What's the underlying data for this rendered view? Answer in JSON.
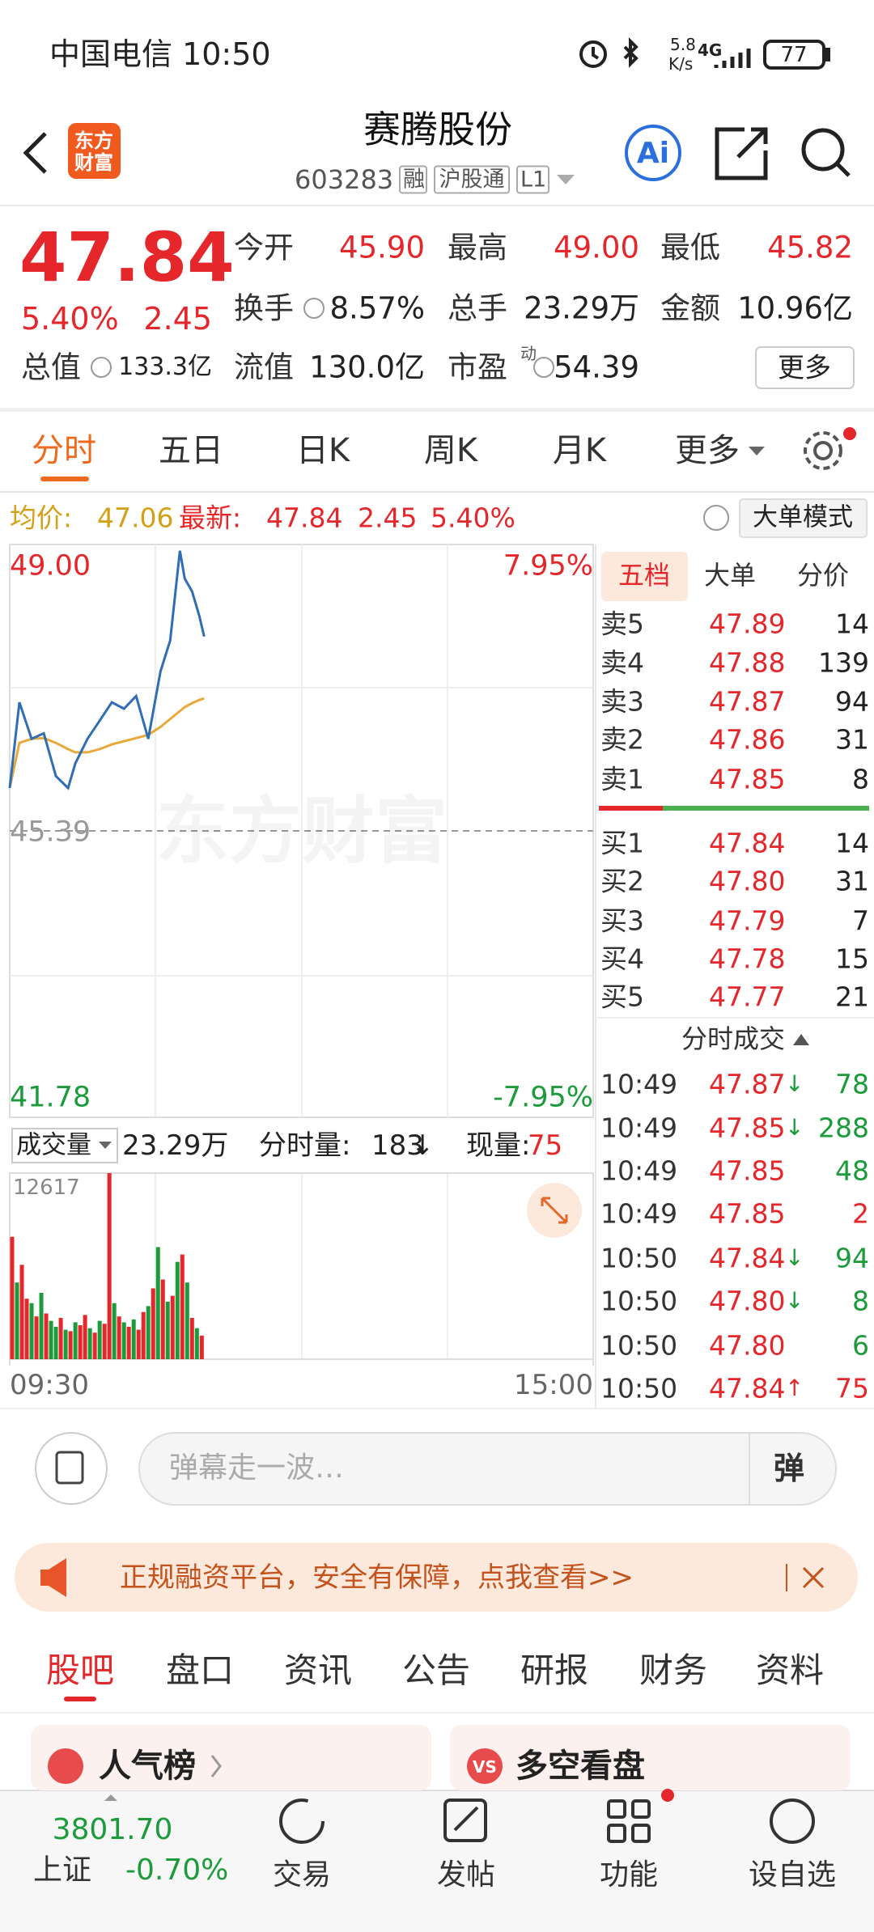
{
  "status_bar": {
    "carrier_time": "中国电信 10:50",
    "net_speed": "5.8",
    "net_unit": "K/s",
    "network": "4G",
    "battery": "77"
  },
  "header": {
    "logo": [
      "东方",
      "财富"
    ],
    "title": "赛腾股份",
    "code": "603283",
    "tags": [
      "融",
      "沪股通",
      "L1"
    ],
    "ai_icon": "Ai"
  },
  "quote": {
    "price": "47.84",
    "change_pct": "5.40%",
    "change": "2.45",
    "stats": [
      {
        "label": "今开",
        "value": "45.90",
        "color": "#e5262a"
      },
      {
        "label": "最高",
        "value": "49.00",
        "color": "#e5262a"
      },
      {
        "label": "最低",
        "value": "45.82",
        "color": "#e5262a"
      },
      {
        "label": "换手",
        "value": "8.57%"
      },
      {
        "label": "总手",
        "value": "23.29万"
      },
      {
        "label": "金额",
        "value": "10.96亿"
      },
      {
        "label": "总值",
        "value": "133.3亿"
      },
      {
        "label": "流值",
        "value": "130.0亿"
      },
      {
        "label": "市盈",
        "value": "54.39",
        "superscript": "动"
      }
    ],
    "more": "更多"
  },
  "chart_tabs": [
    "分时",
    "五日",
    "日K",
    "周K",
    "月K",
    "更多"
  ],
  "intraday_summary": {
    "avg_label": "均价:",
    "avg": "47.06",
    "latest_label": "最新:",
    "latest": "47.84",
    "change": "2.45",
    "change_pct": "5.40%",
    "mode_button": "大单模式"
  },
  "watermark": "东方财富",
  "chart_data": [
    {
      "type": "line",
      "x": [
        0,
        4,
        9,
        14,
        19,
        24,
        27,
        32,
        37,
        42,
        47,
        52,
        57,
        62,
        66,
        70,
        72,
        75,
        78,
        80
      ],
      "xlim": [
        0,
        240
      ],
      "ylim": [
        41.78,
        49.0
      ],
      "yticks": [
        {
          "value": 49,
          "label": "49.00"
        },
        {
          "value": 45.39,
          "label": "45.39"
        },
        {
          "value": 41.78,
          "label": "41.78"
        }
      ],
      "y2lim": [
        -7.95,
        7.95
      ],
      "y2ticks": [
        {
          "value": 7.95,
          "label": "7.95%"
        },
        {
          "value": -7.95,
          "label": "-7.95%"
        }
      ],
      "series": [
        {
          "color": "#2f6db5",
          "values": [
            45.93,
            47.01,
            46.55,
            46.62,
            46.08,
            45.93,
            46.24,
            46.55,
            46.78,
            47.01,
            46.93,
            47.09,
            46.55,
            47.4,
            47.79,
            48.92,
            48.57,
            48.41,
            48.1,
            47.84
          ]
        },
        {
          "color": "#e8a93a",
          "values": [
            45.93,
            46.5,
            46.55,
            46.56,
            46.5,
            46.42,
            46.38,
            46.38,
            46.42,
            46.48,
            46.52,
            46.56,
            46.6,
            46.7,
            46.8,
            46.9,
            46.95,
            47.0,
            47.04,
            47.06
          ]
        }
      ]
    },
    {
      "type": "bar",
      "x": [
        0,
        2,
        4,
        6,
        8,
        10,
        12,
        14,
        16,
        18,
        20,
        22,
        24,
        26,
        28,
        30,
        32,
        34,
        36,
        38,
        40,
        42,
        44,
        46,
        48,
        50,
        52,
        54,
        56,
        58,
        60,
        62,
        64,
        66,
        68,
        70,
        72,
        74,
        76,
        78
      ],
      "xlim": [
        0,
        240
      ],
      "xticks": [
        {
          "value": 0,
          "label": "09:30"
        },
        {
          "value": 240,
          "label": "15:00"
        }
      ],
      "ylim": [
        0,
        12617
      ],
      "yticks": [
        12617
      ],
      "values": [
        8300,
        5200,
        6400,
        4100,
        3800,
        2900,
        4500,
        3100,
        2600,
        2200,
        2800,
        2000,
        1900,
        2500,
        2300,
        3000,
        2100,
        1800,
        2600,
        2400,
        12617,
        3800,
        2900,
        2500,
        2200,
        2700,
        2000,
        3200,
        3600,
        4800,
        7600,
        5400,
        3900,
        4300,
        6600,
        7100,
        5200,
        2800,
        2100,
        1600
      ],
      "colors": [
        "#e5262a",
        "#1b9b3a",
        "#e5262a",
        "#e5262a",
        "#1b9b3a",
        "#e5262a",
        "#1b9b3a",
        "#e5262a",
        "#1b9b3a",
        "#1b9b3a",
        "#e5262a",
        "#1b9b3a",
        "#e5262a",
        "#1b9b3a",
        "#e5262a",
        "#e5262a",
        "#1b9b3a",
        "#e5262a",
        "#1b9b3a",
        "#e5262a",
        "#e5262a",
        "#1b9b3a",
        "#e5262a",
        "#1b9b3a",
        "#e5262a",
        "#1b9b3a",
        "#e5262a",
        "#e5262a",
        "#1b9b3a",
        "#e5262a",
        "#1b9b3a",
        "#e5262a",
        "#1b9b3a",
        "#e5262a",
        "#1b9b3a",
        "#e5262a",
        "#1b9b3a",
        "#e5262a",
        "#1b9b3a",
        "#e5262a"
      ]
    }
  ],
  "volume_header": {
    "selector": "成交量",
    "total": "23.29万",
    "minute_label": "分时量:",
    "minute_value": "183",
    "minute_arrow": "↓",
    "current_label": "现量:",
    "current_value": "75"
  },
  "order_book": {
    "tabs": [
      "五档",
      "大单",
      "分价"
    ],
    "asks": [
      {
        "label": "卖5",
        "price": "47.89",
        "volume": "14"
      },
      {
        "label": "卖4",
        "price": "47.88",
        "volume": "139"
      },
      {
        "label": "卖3",
        "price": "47.87",
        "volume": "94"
      },
      {
        "label": "卖2",
        "price": "47.86",
        "volume": "31"
      },
      {
        "label": "卖1",
        "price": "47.85",
        "volume": "8"
      }
    ],
    "bids": [
      {
        "label": "买1",
        "price": "47.84",
        "volume": "14"
      },
      {
        "label": "买2",
        "price": "47.80",
        "volume": "31"
      },
      {
        "label": "买3",
        "price": "47.79",
        "volume": "7"
      },
      {
        "label": "买4",
        "price": "47.78",
        "volume": "15"
      },
      {
        "label": "买5",
        "price": "47.77",
        "volume": "21"
      }
    ]
  },
  "trades": {
    "title": "分时成交",
    "rows": [
      {
        "time": "10:49",
        "price": "47.87",
        "arrow": "↓",
        "volume": "78",
        "color": "#1b9b3a"
      },
      {
        "time": "10:49",
        "price": "47.85",
        "arrow": "↓",
        "volume": "288",
        "color": "#1b9b3a"
      },
      {
        "time": "10:49",
        "price": "47.85",
        "volume": "48",
        "color": "#1b9b3a"
      },
      {
        "time": "10:49",
        "price": "47.85",
        "volume": "2",
        "color": "#e5262a"
      },
      {
        "time": "10:50",
        "price": "47.84",
        "arrow": "↓",
        "volume": "94",
        "color": "#1b9b3a"
      },
      {
        "time": "10:50",
        "price": "47.80",
        "arrow": "↓",
        "volume": "8",
        "color": "#1b9b3a"
      },
      {
        "time": "10:50",
        "price": "47.80",
        "volume": "6",
        "color": "#1b9b3a"
      },
      {
        "time": "10:50",
        "price": "47.84",
        "arrow": "↑",
        "volume": "75",
        "color": "#e5262a"
      }
    ]
  },
  "comment": {
    "placeholder": "弹幕走一波…",
    "button": "弹"
  },
  "banner": {
    "text": "正规融资平台，安全有保障，点我查看>>"
  },
  "section_tabs": [
    "股吧",
    "盘口",
    "资讯",
    "公告",
    "研报",
    "财务",
    "资料"
  ],
  "cards": [
    {
      "title": "人气榜"
    },
    {
      "title": "多空看盘",
      "badge": "VS"
    }
  ],
  "bottom_nav": {
    "index_value": "3801.70",
    "index_name": "上证",
    "index_change": "-0.70%",
    "items": [
      "交易",
      "发帖",
      "功能",
      "设自选"
    ]
  }
}
